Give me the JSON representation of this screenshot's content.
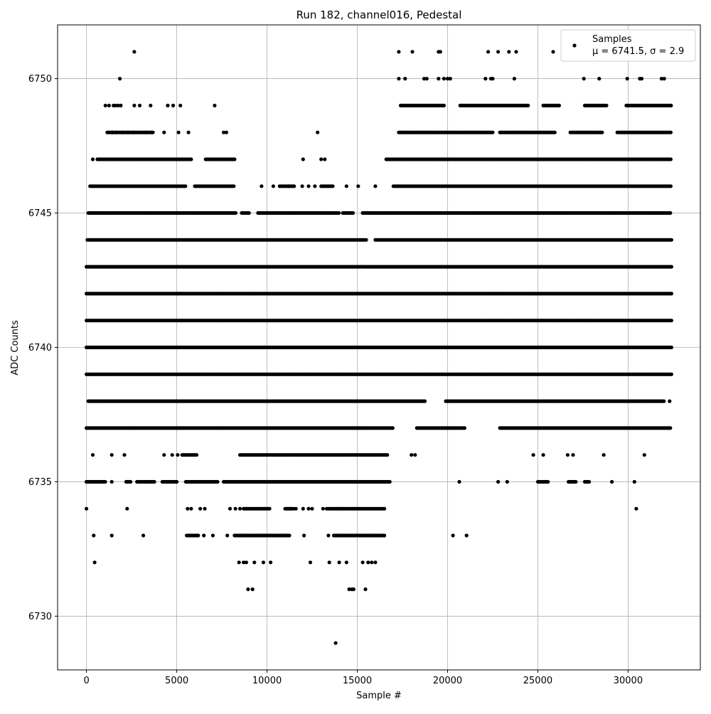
{
  "chart_data": {
    "type": "scatter",
    "title": "Run 182, channel016, Pedestal",
    "xlabel": "Sample #",
    "ylabel": "ADC Counts",
    "xlim": [
      -1600,
      34000
    ],
    "ylim": [
      6728.0,
      6752.0
    ],
    "xticks": [
      0,
      5000,
      10000,
      15000,
      20000,
      25000,
      30000
    ],
    "yticks": [
      6730,
      6735,
      6740,
      6745,
      6750
    ],
    "grid": true,
    "legend_position": "top-right",
    "legend": {
      "label": "Samples",
      "stats": "μ = 6741.5, σ = 2.9"
    },
    "marker_color": "#000000",
    "series": [
      {
        "name": "Samples",
        "bands": [
          {
            "y": 6751,
            "x": [
              2650,
              17300,
              18050,
              19500,
              19600,
              22250,
              22800,
              23400,
              23800,
              25850,
              30700,
              30750
            ]
          },
          {
            "y": 6750,
            "x": [
              1850,
              17300,
              17650,
              18700,
              18850,
              19500,
              19800,
              20000,
              20150,
              22100,
              22400,
              22500,
              23700,
              27550,
              28400,
              29950,
              30650,
              30750,
              31850,
              32000
            ]
          },
          {
            "y": 6749,
            "x": [
              1050,
              1250,
              1500,
              1600,
              1750,
              1900,
              2650,
              2950,
              3550,
              4500,
              4800,
              5200,
              7100
            ],
            "ranges": [
              [
                17400,
                19850
              ],
              [
                20700,
                24500
              ],
              [
                25300,
                26200
              ],
              [
                27600,
                28800
              ],
              [
                29900,
                32400
              ]
            ]
          },
          {
            "y": 6748,
            "x": [
              1150,
              1450,
              1650,
              2000,
              2300,
              2600,
              3300,
              3600,
              4300,
              5100,
              5650,
              7600,
              7750,
              12800
            ],
            "ranges": [
              [
                1200,
                3700
              ],
              [
                17300,
                22500
              ],
              [
                22900,
                26000
              ],
              [
                26800,
                28600
              ],
              [
                29400,
                32400
              ]
            ]
          },
          {
            "y": 6747,
            "x": [
              350,
              12000,
              13000,
              13200
            ],
            "ranges": [
              [
                600,
                5800
              ],
              [
                6600,
                8200
              ],
              [
                16600,
                32400
              ]
            ]
          },
          {
            "y": 6746,
            "x": [
              9700,
              10350,
              11200,
              11950,
              12300,
              12650,
              14400,
              15050,
              16000
            ],
            "ranges": [
              [
                200,
                5500
              ],
              [
                6000,
                8200
              ],
              [
                10700,
                11500
              ],
              [
                13000,
                13700
              ],
              [
                17000,
                32400
              ]
            ]
          },
          {
            "y": 6745,
            "ranges": [
              [
                100,
                8300
              ],
              [
                8600,
                9000
              ],
              [
                9500,
                14000
              ],
              [
                14200,
                14800
              ],
              [
                15300,
                32400
              ]
            ]
          },
          {
            "y": 6744,
            "ranges": [
              [
                50,
                15500
              ],
              [
                16000,
                32400
              ]
            ]
          },
          {
            "y": 6743,
            "ranges": [
              [
                0,
                32400
              ]
            ]
          },
          {
            "y": 6742,
            "ranges": [
              [
                0,
                32400
              ]
            ]
          },
          {
            "y": 6741,
            "ranges": [
              [
                0,
                32400
              ]
            ]
          },
          {
            "y": 6740,
            "ranges": [
              [
                0,
                32400
              ]
            ]
          },
          {
            "y": 6739,
            "ranges": [
              [
                0,
                32400
              ]
            ]
          },
          {
            "y": 6738,
            "x": [
              32300
            ],
            "ranges": [
              [
                100,
                18800
              ],
              [
                19900,
                32000
              ]
            ]
          },
          {
            "y": 6737,
            "ranges": [
              [
                0,
                17000
              ],
              [
                18300,
                21000
              ],
              [
                22900,
                32400
              ]
            ]
          },
          {
            "y": 6736,
            "x": [
              350,
              1400,
              2100,
              4300,
              4750,
              5050,
              18000,
              18200,
              24750,
              25300,
              26650,
              26950,
              28650,
              30900
            ],
            "ranges": [
              [
                5300,
                6100
              ],
              [
                8500,
                16700
              ]
            ]
          },
          {
            "y": 6735,
            "x": [
              1400,
              20650,
              22800,
              23300,
              29100,
              30350
            ],
            "ranges": [
              [
                0,
                1100
              ],
              [
                2200,
                2500
              ],
              [
                2800,
                3800
              ],
              [
                4200,
                5000
              ],
              [
                5500,
                7300
              ],
              [
                7600,
                16800
              ],
              [
                25000,
                25600
              ],
              [
                26700,
                27100
              ],
              [
                27600,
                27900
              ]
            ]
          },
          {
            "y": 6734,
            "x": [
              0,
              2250,
              5600,
              5800,
              6300,
              6550,
              7950,
              8250,
              8500,
              11300,
              11600,
              12000,
              12300,
              12500,
              13100,
              30450
            ],
            "ranges": [
              [
                8700,
                10200
              ],
              [
                11000,
                11500
              ],
              [
                13300,
                16500
              ]
            ]
          },
          {
            "y": 6733,
            "x": [
              400,
              1400,
              3150,
              6500,
              7000,
              7800,
              12050,
              13400,
              20300,
              21050
            ],
            "ranges": [
              [
                5550,
                6200
              ],
              [
                8200,
                11300
              ],
              [
                13700,
                16500
              ]
            ]
          },
          {
            "y": 6732,
            "x": [
              450,
              8450,
              8700,
              8850,
              9300,
              9800,
              10200,
              12400,
              13450,
              14000,
              14400,
              15300,
              15600,
              15800,
              16000
            ]
          },
          {
            "y": 6731,
            "x": [
              8950,
              9200,
              14550,
              14700,
              14800,
              15450
            ]
          },
          {
            "y": 6729,
            "x": [
              13800
            ]
          }
        ]
      }
    ]
  }
}
